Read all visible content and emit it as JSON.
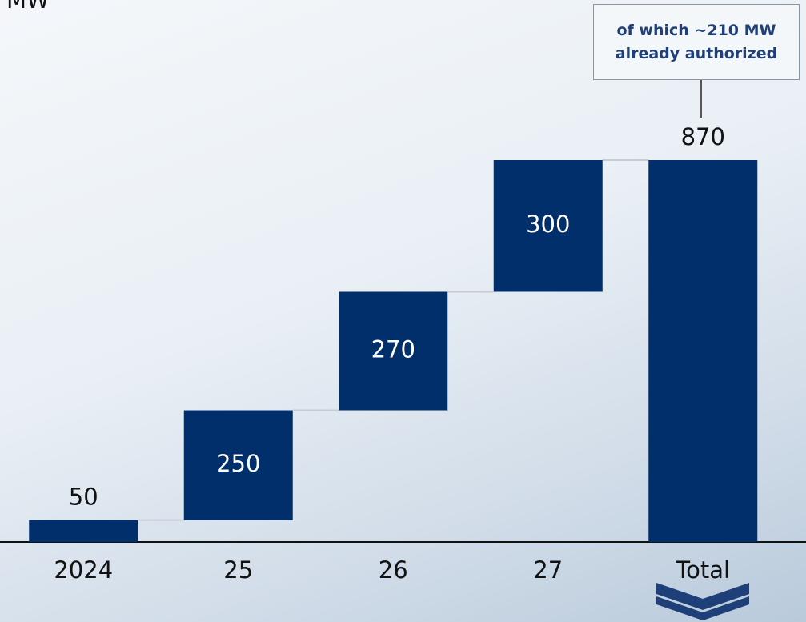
{
  "chart_data": {
    "type": "waterfall",
    "y_label": "MW",
    "categories": [
      "2024",
      "25",
      "26",
      "27",
      "Total"
    ],
    "values": [
      50,
      250,
      270,
      300,
      870
    ],
    "color": "#002f6c",
    "annotation": "of which ~210 MW already authorized"
  }
}
